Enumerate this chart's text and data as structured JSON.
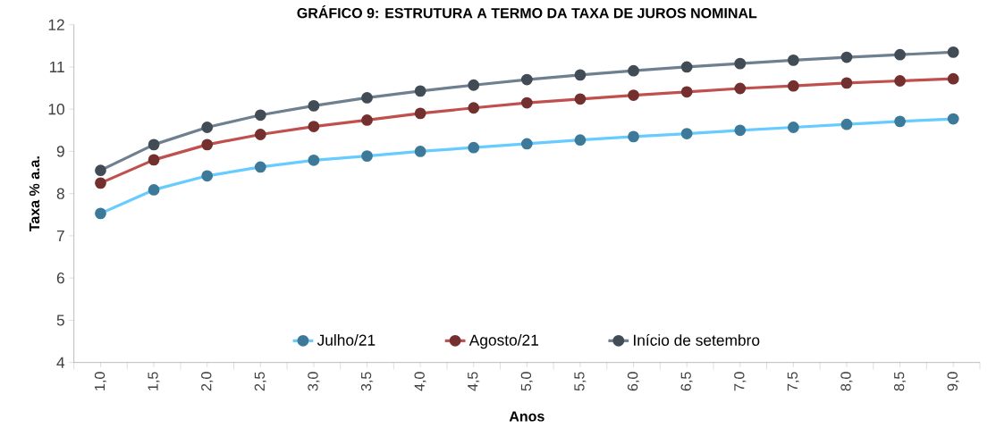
{
  "chart_data": {
    "type": "line",
    "title": "GRÁFICO 9: ESTRUTURA A TERMO DA TAXA DE JUROS NOMINAL",
    "xlabel": "Anos",
    "ylabel": "Taxa % a.a.",
    "categories": [
      "1,0",
      "1,5",
      "2,0",
      "2,5",
      "3,0",
      "3,5",
      "4,0",
      "4,5",
      "5,0",
      "5,5",
      "6,0",
      "6,5",
      "7,0",
      "7,5",
      "8,0",
      "8,5",
      "9,0"
    ],
    "series": [
      {
        "name": "Julho/21",
        "color": "#66ccff",
        "values": [
          7.53,
          8.09,
          8.42,
          8.63,
          8.79,
          8.89,
          9.0,
          9.09,
          9.18,
          9.27,
          9.35,
          9.42,
          9.5,
          9.57,
          9.64,
          9.71,
          9.77
        ]
      },
      {
        "name": "Agosto/21",
        "color": "#c0504d",
        "values": [
          8.25,
          8.8,
          9.16,
          9.4,
          9.59,
          9.74,
          9.9,
          10.03,
          10.15,
          10.24,
          10.33,
          10.41,
          10.49,
          10.55,
          10.62,
          10.67,
          10.72
        ]
      },
      {
        "name": "Início de setembro",
        "color": "#6e7f8f",
        "values": [
          8.55,
          9.16,
          9.57,
          9.86,
          10.08,
          10.27,
          10.43,
          10.57,
          10.7,
          10.81,
          10.91,
          11.0,
          11.08,
          11.16,
          11.23,
          11.29,
          11.35
        ]
      }
    ],
    "ylim": [
      4,
      12
    ],
    "yticks": [
      4,
      5,
      6,
      7,
      8,
      9,
      10,
      11,
      12
    ],
    "grid": false,
    "legend": "bottom",
    "marker": "circle",
    "line_style": "solid"
  }
}
